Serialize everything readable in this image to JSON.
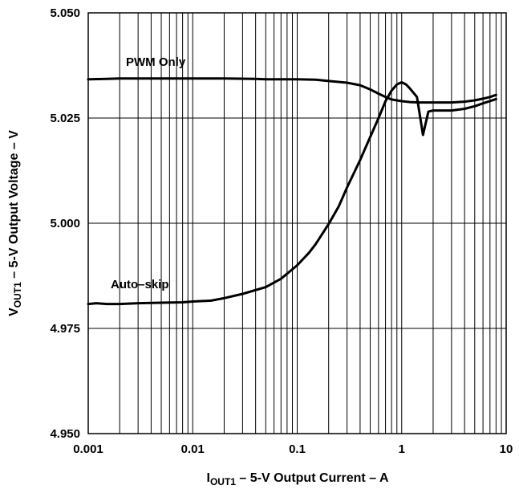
{
  "chart_data": {
    "type": "line",
    "x_scale": "log",
    "xlim": [
      0.001,
      10
    ],
    "ylim": [
      4.95,
      5.05
    ],
    "x_ticks": [
      "0.001",
      "0.01",
      "0.1",
      "1",
      "10"
    ],
    "y_ticks": [
      "4.950",
      "4.975",
      "5.000",
      "5.025",
      "5.050"
    ],
    "grid": true,
    "xlabel": {
      "main": "I",
      "sub": "OUT1",
      "rest": " – 5-V Output Current – A"
    },
    "ylabel": {
      "main": "V",
      "sub": "OUT1",
      "rest": " – 5-V Output Voltage – V"
    },
    "series": [
      {
        "name": "PWM Only",
        "x": [
          0.001,
          0.0015,
          0.002,
          0.005,
          0.01,
          0.02,
          0.04,
          0.05,
          0.1,
          0.15,
          0.2,
          0.3,
          0.4,
          0.5,
          0.6,
          0.7,
          0.8,
          1.0,
          1.2,
          1.5,
          2.0,
          3.0,
          4.0,
          5.0,
          6.0,
          7.0,
          8.0
        ],
        "y": [
          5.0342,
          5.0343,
          5.0344,
          5.0344,
          5.0344,
          5.0344,
          5.0343,
          5.0342,
          5.0342,
          5.0341,
          5.0338,
          5.0334,
          5.0328,
          5.0318,
          5.0308,
          5.03,
          5.0294,
          5.029,
          5.0288,
          5.0287,
          5.0287,
          5.0287,
          5.0289,
          5.0292,
          5.0296,
          5.03,
          5.0305
        ]
      },
      {
        "name": "Auto–skip",
        "x": [
          0.001,
          0.0012,
          0.0015,
          0.002,
          0.003,
          0.005,
          0.008,
          0.01,
          0.015,
          0.02,
          0.03,
          0.05,
          0.07,
          0.1,
          0.13,
          0.15,
          0.2,
          0.25,
          0.3,
          0.4,
          0.5,
          0.6,
          0.7,
          0.8,
          0.9,
          1.0,
          1.1,
          1.2,
          1.4,
          1.6,
          1.8,
          2.0,
          3.0,
          4.0,
          5.0,
          6.0,
          8.0
        ],
        "y": [
          4.9808,
          4.981,
          4.9808,
          4.9808,
          4.981,
          4.9811,
          4.9812,
          4.9814,
          4.9816,
          4.9822,
          4.9832,
          4.9848,
          4.9868,
          4.99,
          4.993,
          4.995,
          4.9998,
          5.004,
          5.0085,
          5.015,
          5.0205,
          5.025,
          5.029,
          5.0315,
          5.033,
          5.0335,
          5.033,
          5.032,
          5.03,
          5.021,
          5.0265,
          5.0268,
          5.0268,
          5.0272,
          5.0278,
          5.0285,
          5.0295
        ]
      }
    ]
  }
}
